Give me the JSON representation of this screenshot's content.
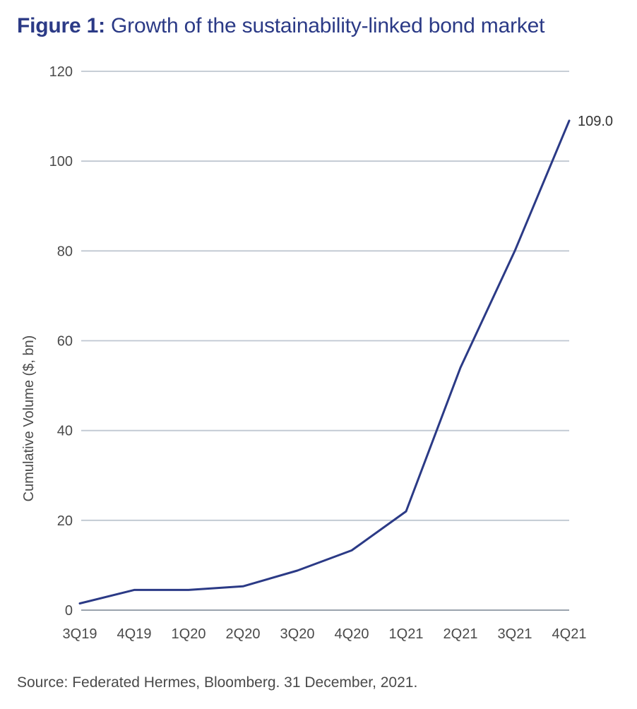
{
  "figure": {
    "label": "Figure 1:",
    "title": "Growth of the sustainability-linked bond market"
  },
  "source": "Source: Federated Hermes, Bloomberg. 31 December, 2021.",
  "colors": {
    "title": "#2b3a86",
    "line": "#2b3a86",
    "grid": "#bfc7d1",
    "tick_text": "#4a4a4a"
  },
  "chart_data": {
    "type": "line",
    "title": "Growth of the sustainability-linked bond market",
    "xlabel": "",
    "ylabel": "Cumulative Volume ($, bn)",
    "categories": [
      "3Q19",
      "4Q19",
      "1Q20",
      "2Q20",
      "3Q20",
      "4Q20",
      "1Q21",
      "2Q21",
      "3Q21",
      "4Q21"
    ],
    "series": [
      {
        "values": [
          1.5,
          4.5,
          4.5,
          5.3,
          8.8,
          13.3,
          22.0,
          54.0,
          80.0,
          109.0
        ]
      }
    ],
    "ylim": [
      0,
      120
    ],
    "yticks": [
      0,
      20,
      40,
      60,
      80,
      100,
      120
    ],
    "grid": true,
    "legend": "none",
    "annotations": [
      {
        "category": "4Q21",
        "text": "109.0"
      }
    ]
  }
}
